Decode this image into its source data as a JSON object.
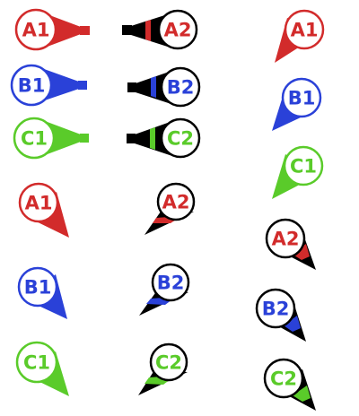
{
  "colors": {
    "red": "#d22b2b",
    "blue": "#2a41d8",
    "green": "#5acb2a",
    "black": "#000000",
    "white": "#ffffff"
  },
  "markers": [
    {
      "label": "A1",
      "color": "red",
      "style": "filled-horizontal"
    },
    {
      "label": "A2",
      "color": "red",
      "style": "outline-horizontal"
    },
    {
      "label": "A1",
      "color": "red",
      "style": "filled-pin"
    },
    {
      "label": "B1",
      "color": "blue",
      "style": "filled-horizontal"
    },
    {
      "label": "B2",
      "color": "blue",
      "style": "outline-horizontal"
    },
    {
      "label": "B1",
      "color": "blue",
      "style": "filled-pin"
    },
    {
      "label": "C1",
      "color": "green",
      "style": "filled-horizontal"
    },
    {
      "label": "C2",
      "color": "green",
      "style": "outline-horizontal"
    },
    {
      "label": "C1",
      "color": "green",
      "style": "filled-pin"
    },
    {
      "label": "A1",
      "color": "red",
      "style": "filled-pin"
    },
    {
      "label": "A2",
      "color": "red",
      "style": "outline-pin"
    },
    {
      "label": "A2",
      "color": "red",
      "style": "outline-pin"
    },
    {
      "label": "B1",
      "color": "blue",
      "style": "filled-pin"
    },
    {
      "label": "B2",
      "color": "blue",
      "style": "outline-pin"
    },
    {
      "label": "B2",
      "color": "blue",
      "style": "outline-pin"
    },
    {
      "label": "C1",
      "color": "green",
      "style": "filled-pin"
    },
    {
      "label": "C2",
      "color": "green",
      "style": "outline-pin"
    },
    {
      "label": "C2",
      "color": "green",
      "style": "outline-pin"
    }
  ]
}
